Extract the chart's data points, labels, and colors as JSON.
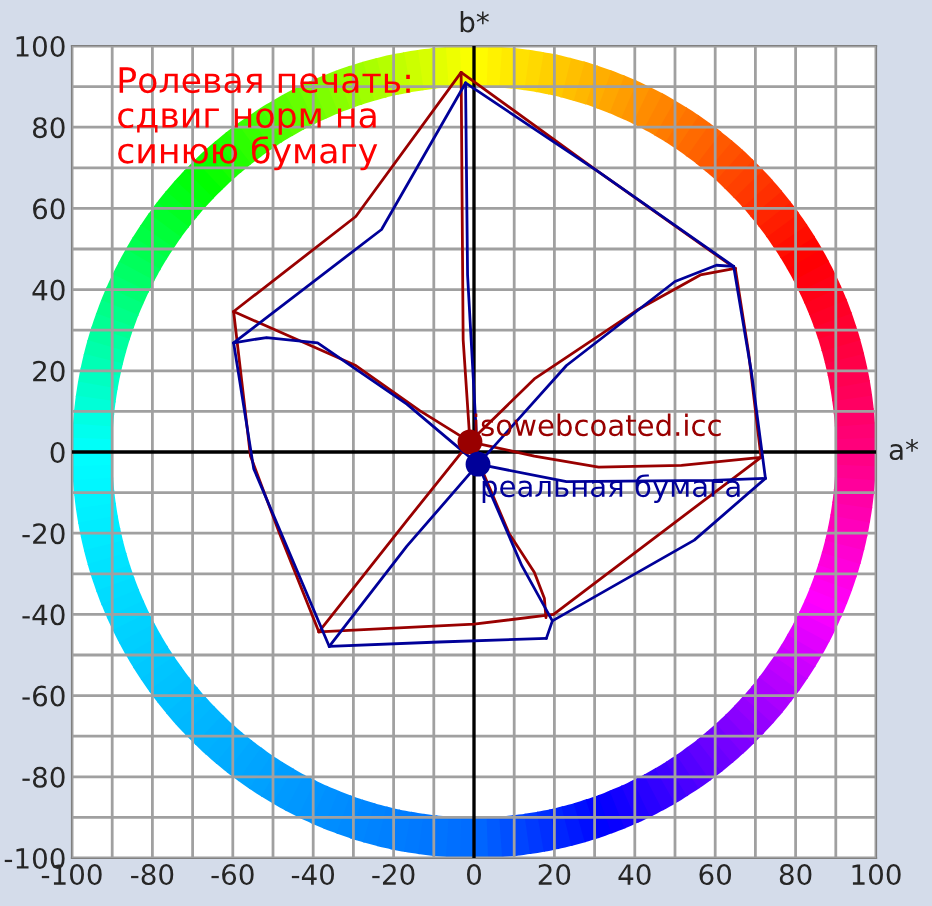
{
  "chart_data": {
    "type": "line",
    "title": "Ролевая печать:\nсдвиг норм на\nсинюю бумагу",
    "xlabel": "a*",
    "ylabel": "b*",
    "xlim": [
      -100,
      100
    ],
    "ylim": [
      -100,
      100
    ],
    "xticks": [
      -100,
      {
        "value": -90,
        "label": null
      },
      -80,
      {
        "value": -70,
        "label": null
      },
      -60,
      {
        "value": -50,
        "label": null
      },
      -40,
      {
        "value": -30,
        "label": null
      },
      -20,
      {
        "value": -10,
        "label": null
      },
      0,
      {
        "value": 10,
        "label": null
      },
      20,
      {
        "value": 30,
        "label": null
      },
      40,
      {
        "value": 50,
        "label": null
      },
      60,
      {
        "value": 70,
        "label": null
      },
      80,
      {
        "value": 90,
        "label": null
      },
      100
    ],
    "yticks": [
      -100,
      {
        "value": -90,
        "label": null
      },
      -80,
      {
        "value": -70,
        "label": null
      },
      -60,
      {
        "value": -50,
        "label": null
      },
      -40,
      {
        "value": -30,
        "label": null
      },
      -20,
      {
        "value": -10,
        "label": null
      },
      0,
      {
        "value": 10,
        "label": null
      },
      20,
      {
        "value": 30,
        "label": null
      },
      40,
      {
        "value": 50,
        "label": null
      },
      60,
      {
        "value": 70,
        "label": null
      },
      80,
      {
        "value": 90,
        "label": null
      },
      100
    ],
    "grid": true,
    "legend": false,
    "marker": "none",
    "line_style": "solid",
    "series": [
      {
        "color": "#990000",
        "x": [
          -59.8,
          -29.4,
          -3.2
        ],
        "values": [
          34.6,
          58,
          93.5
        ]
      },
      {
        "color": "#990000",
        "x": [
          -3.2,
          31,
          65
        ],
        "values": [
          93.5,
          69,
          45.2
        ]
      },
      {
        "color": "#990000",
        "x": [
          65,
          68.3,
          71.4
        ],
        "values": [
          45.2,
          24.5,
          -1.3
        ]
      },
      {
        "color": "#990000",
        "x": [
          71.4,
          19.8
        ],
        "values": [
          -1.3,
          -40
        ]
      },
      {
        "color": "#990000",
        "x": [
          19.8,
          0,
          -38.6
        ],
        "values": [
          -40,
          -42.4,
          -44.3
        ]
      },
      {
        "color": "#990000",
        "x": [
          -38.6,
          -48.4,
          -55.6,
          -59.8
        ],
        "values": [
          -44.3,
          -20,
          -1,
          34.6
        ]
      },
      {
        "color": "#990000",
        "x": [
          -1,
          -2.7,
          -3.2
        ],
        "values": [
          2.5,
          27.7,
          93.5
        ]
      },
      {
        "color": "#990000",
        "x": [
          -1,
          15,
          40.5,
          56.3,
          65
        ],
        "values": [
          2.5,
          18,
          34.9,
          43.6,
          45.2
        ]
      },
      {
        "color": "#990000",
        "x": [
          -1,
          15,
          31,
          51.6,
          71.4
        ],
        "values": [
          2.5,
          -1,
          -3.7,
          -3.3,
          -1.3
        ]
      },
      {
        "color": "#990000",
        "x": [
          -1,
          8.7,
          15,
          17.5,
          17.9
        ],
        "values": [
          2.5,
          -20,
          -29.6,
          -36,
          -40.8
        ]
      },
      {
        "color": "#990000",
        "x": [
          -1,
          -16.7,
          -38.6
        ],
        "values": [
          2.5,
          -16.9,
          -44.3
        ]
      },
      {
        "color": "#990000",
        "x": [
          -1,
          -13.5,
          -29.4,
          -59.8
        ],
        "values": [
          2.5,
          10.2,
          21.3,
          34.6
        ]
      },
      {
        "color": "#000099",
        "x": [
          -59.8,
          -23,
          -2.1
        ],
        "values": [
          26.9,
          54.8,
          90.9
        ]
      },
      {
        "color": "#000099",
        "x": [
          -2.1,
          31,
          64.6
        ],
        "values": [
          90.9,
          69,
          45.7
        ]
      },
      {
        "color": "#000099",
        "x": [
          64.6,
          69,
          72.5
        ],
        "values": [
          45.7,
          19.7,
          -6.5
        ]
      },
      {
        "color": "#000099",
        "x": [
          72.5,
          54.8,
          19.5,
          18
        ],
        "values": [
          -6.5,
          -21.7,
          -41.6,
          -45.9
        ]
      },
      {
        "color": "#000099",
        "x": [
          18,
          -8.7,
          -36
        ],
        "values": [
          -45.9,
          -46.8,
          -47.9
        ]
      },
      {
        "color": "#000099",
        "x": [
          -36,
          -54.8,
          -59.8
        ],
        "values": [
          -47.9,
          -4.1,
          26.9
        ]
      },
      {
        "color": "#000099",
        "x": [
          1,
          -1.6,
          -2.1
        ],
        "values": [
          -3,
          43.6,
          90.9
        ]
      },
      {
        "color": "#000099",
        "x": [
          1,
          23,
          50,
          60.3,
          64.6
        ],
        "values": [
          -3,
          21.3,
          42,
          46,
          45.7
        ]
      },
      {
        "color": "#000099",
        "x": [
          1,
          23,
          59.5,
          72.5
        ],
        "values": [
          -3,
          -7.3,
          -7,
          -6.5
        ]
      },
      {
        "color": "#000099",
        "x": [
          1,
          11.9,
          19.5
        ],
        "values": [
          -3,
          -28,
          -41.6
        ]
      },
      {
        "color": "#000099",
        "x": [
          1,
          -16.7,
          -36
        ],
        "values": [
          -3,
          -23.2,
          -47.9
        ]
      },
      {
        "color": "#000099",
        "x": [
          1,
          -16.7,
          -38.9,
          -51.6,
          -59.8
        ],
        "values": [
          -3,
          11.8,
          26.9,
          28.2,
          26.9
        ]
      },
      {
        "type": "scatter",
        "marker": "circle",
        "name": "isowebcoated.icc",
        "color": "#990000",
        "x": [
          -1
        ],
        "values": [
          2.5
        ]
      },
      {
        "type": "scatter",
        "marker": "circle",
        "name": "реальная бумага",
        "color": "#000099",
        "x": [
          1
        ],
        "values": [
          -3
        ]
      }
    ]
  }
}
